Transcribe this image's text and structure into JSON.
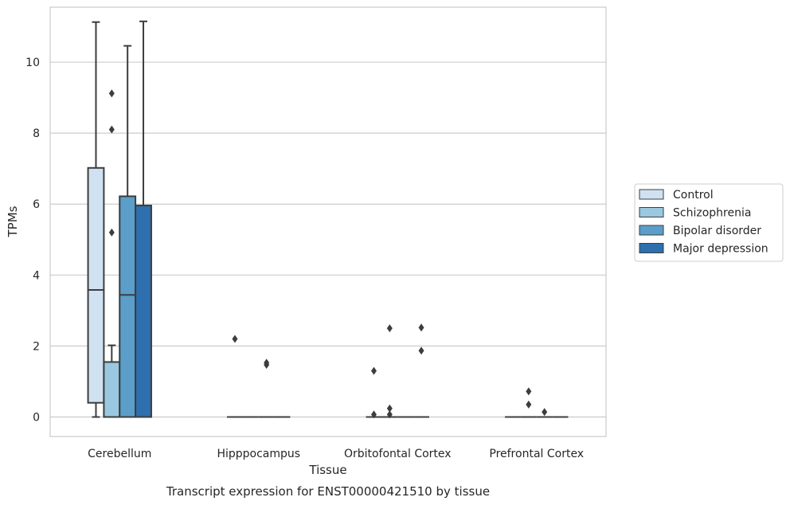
{
  "chart_data": {
    "type": "box",
    "xlabel": "Tissue",
    "ylabel": "TPMs",
    "caption": "Transcript expression for ENST00000421510 by tissue",
    "ylim": [
      -0.55,
      11.55
    ],
    "yticks": [
      0,
      2,
      4,
      6,
      8,
      10
    ],
    "grid": "horizontal",
    "legend_position": "right",
    "categories": [
      "Cerebellum",
      "Hipppocampus",
      "Orbitofontal Cortex",
      "Prefrontal Cortex"
    ],
    "series": [
      {
        "name": "Control",
        "color": "#d0e1f2",
        "boxes": [
          {
            "whislo": 0.0,
            "q1": 0.4,
            "med": 3.58,
            "q3": 7.02,
            "whishi": 11.13,
            "fliers": []
          },
          {
            "whislo": 0,
            "q1": 0,
            "med": 0,
            "q3": 0,
            "whishi": 0,
            "fliers": [
              2.2
            ]
          },
          {
            "whislo": 0,
            "q1": 0,
            "med": 0,
            "q3": 0,
            "whishi": 0,
            "fliers": [
              0.07,
              1.3
            ]
          },
          {
            "whislo": 0,
            "q1": 0,
            "med": 0,
            "q3": 0,
            "whishi": 0,
            "fliers": []
          }
        ]
      },
      {
        "name": "Schizophrenia",
        "color": "#9ac8e0",
        "boxes": [
          {
            "whislo": 0.0,
            "q1": 0.0,
            "med": 0.0,
            "q3": 1.55,
            "whishi": 2.02,
            "fliers": [
              5.2,
              8.1,
              9.12
            ]
          },
          {
            "whislo": 0,
            "q1": 0,
            "med": 0,
            "q3": 0,
            "whishi": 0,
            "fliers": []
          },
          {
            "whislo": 0,
            "q1": 0,
            "med": 0,
            "q3": 0,
            "whishi": 0,
            "fliers": [
              0.07,
              0.24,
              2.5
            ]
          },
          {
            "whislo": 0,
            "q1": 0,
            "med": 0,
            "q3": 0,
            "whishi": 0,
            "fliers": [
              0.35,
              0.72
            ]
          }
        ]
      },
      {
        "name": "Bipolar disorder",
        "color": "#5b9ec9",
        "boxes": [
          {
            "whislo": 0.0,
            "q1": 0.0,
            "med": 3.44,
            "q3": 6.22,
            "whishi": 10.46,
            "fliers": []
          },
          {
            "whislo": 0,
            "q1": 0,
            "med": 0,
            "q3": 0,
            "whishi": 0,
            "fliers": [
              1.47,
              1.53
            ]
          },
          {
            "whislo": 0,
            "q1": 0,
            "med": 0,
            "q3": 0,
            "whishi": 0,
            "fliers": []
          },
          {
            "whislo": 0,
            "q1": 0,
            "med": 0,
            "q3": 0,
            "whishi": 0,
            "fliers": [
              0.14
            ]
          }
        ]
      },
      {
        "name": "Major depression",
        "color": "#2d6faf",
        "boxes": [
          {
            "whislo": 0.0,
            "q1": 0.0,
            "med": 0.0,
            "q3": 5.96,
            "whishi": 11.15,
            "fliers": []
          },
          {
            "whislo": 0,
            "q1": 0,
            "med": 0,
            "q3": 0,
            "whishi": 0,
            "fliers": []
          },
          {
            "whislo": 0,
            "q1": 0,
            "med": 0,
            "q3": 0,
            "whishi": 0,
            "fliers": [
              1.87,
              2.52
            ]
          },
          {
            "whislo": 0,
            "q1": 0,
            "med": 0,
            "q3": 0,
            "whishi": 0,
            "fliers": []
          }
        ]
      }
    ]
  }
}
